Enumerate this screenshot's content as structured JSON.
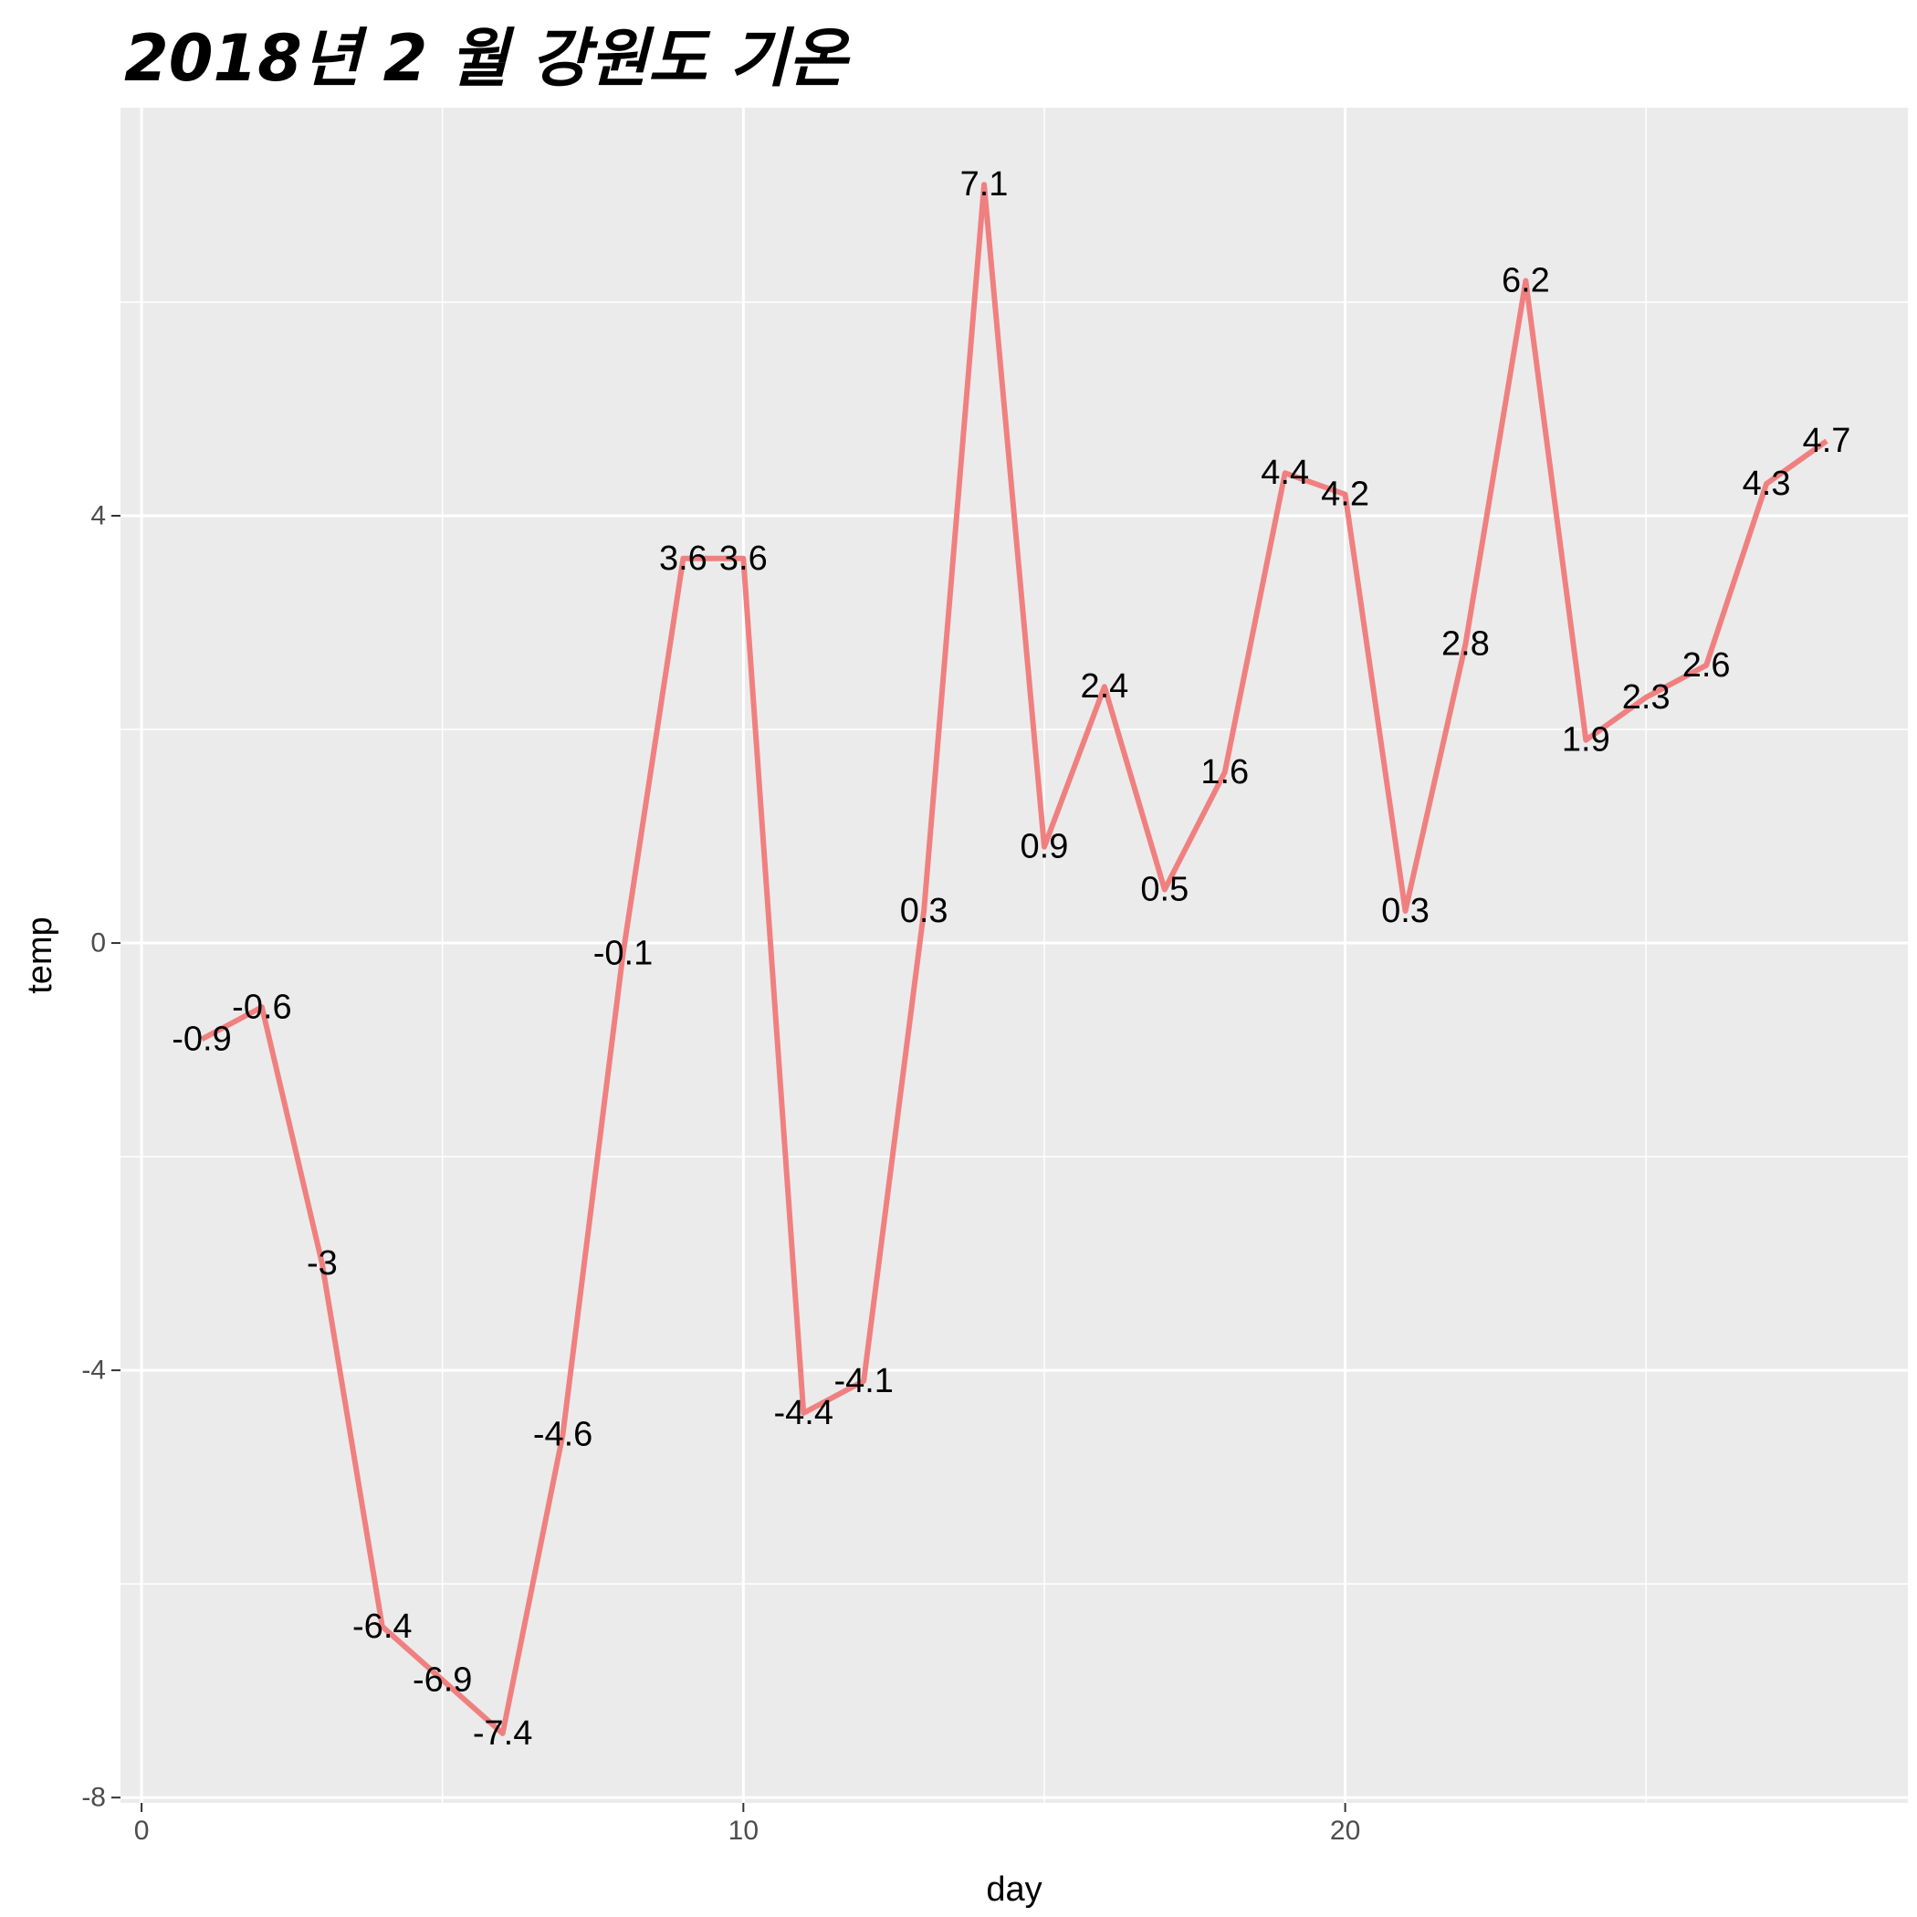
{
  "chart_data": {
    "type": "line",
    "title": "2018년 2 월 강원도 기온",
    "xlabel": "day",
    "ylabel": "temp",
    "x": [
      1,
      2,
      3,
      4,
      5,
      6,
      7,
      8,
      9,
      10,
      11,
      12,
      13,
      14,
      15,
      16,
      17,
      18,
      19,
      20,
      21,
      22,
      23,
      24,
      25,
      26,
      27,
      28
    ],
    "series": [
      {
        "values": [
          -0.9,
          -0.6,
          -3,
          -6.4,
          -6.9,
          -7.4,
          -4.6,
          -0.1,
          3.6,
          3.6,
          -4.4,
          -4.1,
          0.3,
          7.1,
          0.9,
          2.4,
          0.5,
          1.6,
          4.4,
          4.2,
          0.3,
          2.8,
          6.2,
          1.9,
          2.3,
          2.6,
          4.3,
          4.7
        ],
        "labels": [
          "-0.9",
          "-0.6",
          "-3",
          "-6.4",
          "-6.9",
          "-7.4",
          "-4.6",
          "-0.1",
          "3.6",
          "3.6",
          "-4.4",
          "-4.1",
          "0.3",
          "7.1",
          "0.9",
          "2.4",
          "0.5",
          "1.6",
          "4.4",
          "4.2",
          "0.3",
          "2.8",
          "6.2",
          "1.9",
          "2.3",
          "2.6",
          "4.3",
          "4.7"
        ],
        "color": "#F08080"
      }
    ],
    "xlim": [
      -0.35,
      29.35
    ],
    "ylim": [
      -8.05,
      7.82
    ],
    "xticks": [
      0,
      10,
      20
    ],
    "xtick_labels": [
      "0",
      "10",
      "20"
    ],
    "yticks": [
      -8,
      -4,
      0,
      4
    ],
    "ytick_labels": [
      "-8",
      "-4",
      "0",
      "4"
    ],
    "grid": true,
    "legend": "none"
  },
  "colors": {
    "panel_background": "#EBEBEB",
    "grid_line": "#FFFFFF",
    "line": "#F08080"
  }
}
